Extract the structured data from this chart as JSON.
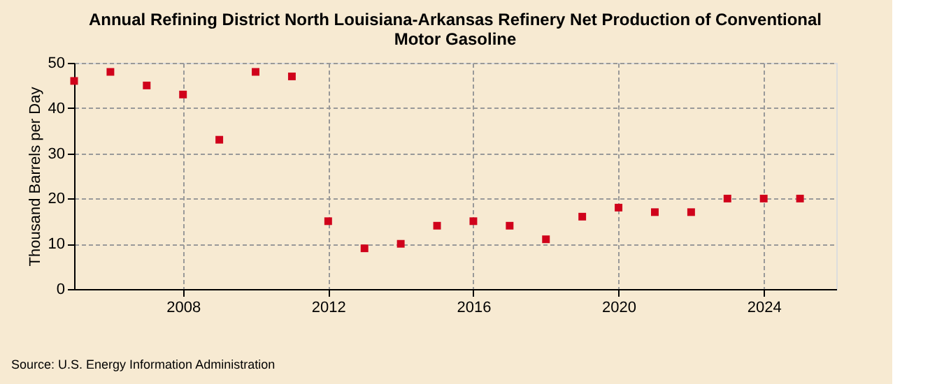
{
  "chart_data": {
    "type": "scatter",
    "title": [
      "Annual Refining District North Louisiana-Arkansas Refinery Net Production of Conventional",
      "Motor Gasoline"
    ],
    "ylabel": "Thousand Barrels per Day",
    "x": [
      2005,
      2006,
      2007,
      2008,
      2009,
      2010,
      2011,
      2012,
      2013,
      2014,
      2015,
      2016,
      2017,
      2018,
      2019,
      2020,
      2021,
      2022,
      2023,
      2024,
      2025
    ],
    "series": [
      {
        "color": "#d0021b",
        "values": [
          46,
          48,
          45,
          43,
          33,
          48,
          47,
          15,
          9,
          10,
          14,
          15,
          14,
          11,
          16,
          18,
          17,
          17,
          20,
          20,
          20
        ]
      }
    ],
    "xlim": [
      2005,
      2026
    ],
    "xticks": [
      2008,
      2012,
      2016,
      2020,
      2024
    ],
    "ylim": [
      0,
      50
    ],
    "yticks": [
      0,
      10,
      20,
      30,
      40,
      50
    ],
    "grid": true,
    "marker": "square",
    "annotations": [
      "Source: U.S. Energy Information Administration"
    ]
  }
}
